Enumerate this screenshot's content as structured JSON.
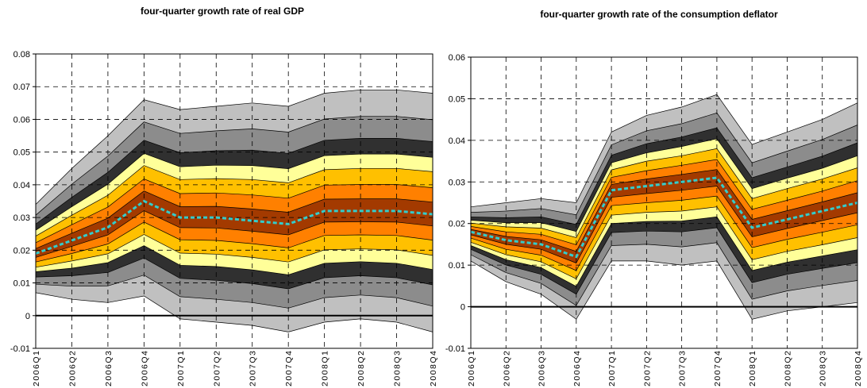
{
  "chart_data": [
    {
      "type": "fan",
      "title": "four-quarter growth rate of real GDP",
      "categories": [
        "2006Q1",
        "2006Q2",
        "2006Q3",
        "2006Q4",
        "2007Q1",
        "2007Q2",
        "2007Q3",
        "2007Q4",
        "2008Q1",
        "2008Q2",
        "2008Q3",
        "2008Q4"
      ],
      "ylim": [
        -0.01,
        0.08
      ],
      "yticks": [
        -0.01,
        0,
        0.01,
        0.02,
        0.03,
        0.04,
        0.05,
        0.06,
        0.07,
        0.08
      ],
      "grid": true,
      "bounds": [
        {
          "values": [
            0.007,
            0.005,
            0.004,
            0.006,
            -0.001,
            -0.002,
            -0.003,
            -0.005,
            -0.002,
            -0.001,
            -0.002,
            -0.005
          ]
        },
        {
          "values": [
            0.0096,
            0.009,
            0.0091,
            0.0124,
            0.0058,
            0.005,
            0.004,
            0.0023,
            0.0055,
            0.0063,
            0.0055,
            0.0029
          ]
        },
        {
          "values": [
            0.0118,
            0.0122,
            0.0132,
            0.0176,
            0.0114,
            0.0108,
            0.0098,
            0.0082,
            0.0116,
            0.0122,
            0.0116,
            0.0094
          ]
        },
        {
          "values": [
            0.0134,
            0.0145,
            0.0162,
            0.0214,
            0.0154,
            0.015,
            0.014,
            0.0125,
            0.016,
            0.0165,
            0.016,
            0.0141
          ]
        },
        {
          "values": [
            0.0148,
            0.0167,
            0.0189,
            0.0248,
            0.0191,
            0.0188,
            0.0178,
            0.0164,
            0.0201,
            0.0204,
            0.0201,
            0.0184
          ]
        },
        {
          "values": [
            0.0164,
            0.019,
            0.0219,
            0.0286,
            0.0232,
            0.023,
            0.022,
            0.0207,
            0.0245,
            0.0247,
            0.0245,
            0.0231
          ]
        },
        {
          "values": [
            0.0178,
            0.0212,
            0.0247,
            0.0321,
            0.0269,
            0.0268,
            0.0258,
            0.0247,
            0.0286,
            0.0287,
            0.0286,
            0.0274
          ]
        },
        {
          "values": [
            0.0205,
            0.0252,
            0.0298,
            0.0381,
            0.0333,
            0.0334,
            0.0326,
            0.0316,
            0.0356,
            0.0357,
            0.0357,
            0.0347
          ]
        },
        {
          "values": [
            0.0223,
            0.0278,
            0.0332,
            0.0418,
            0.0373,
            0.0375,
            0.0369,
            0.0359,
            0.0399,
            0.0401,
            0.0401,
            0.0391
          ]
        },
        {
          "values": [
            0.0243,
            0.0307,
            0.0368,
            0.0459,
            0.0416,
            0.0419,
            0.0416,
            0.0406,
            0.0446,
            0.045,
            0.045,
            0.044
          ]
        },
        {
          "values": [
            0.0261,
            0.0333,
            0.0402,
            0.0496,
            0.0455,
            0.046,
            0.0459,
            0.0449,
            0.0489,
            0.0494,
            0.0494,
            0.0484
          ]
        },
        {
          "values": [
            0.028,
            0.0362,
            0.0438,
            0.0536,
            0.0498,
            0.0504,
            0.0506,
            0.0496,
            0.0536,
            0.0542,
            0.0542,
            0.0532
          ]
        },
        {
          "values": [
            0.0307,
            0.0402,
            0.0488,
            0.0592,
            0.0557,
            0.0565,
            0.0571,
            0.0561,
            0.0601,
            0.0609,
            0.0609,
            0.0599
          ]
        },
        {
          "values": [
            0.034,
            0.045,
            0.055,
            0.066,
            0.063,
            0.064,
            0.065,
            0.064,
            0.068,
            0.069,
            0.069,
            0.068
          ]
        }
      ],
      "band_colors": [
        "#c0c0c0",
        "#8c8c8c",
        "#303030",
        "#ffff99",
        "#ffc000",
        "#ff8000",
        "#a33a00",
        "#ff8000",
        "#ffc000",
        "#ffff99",
        "#303030",
        "#8c8c8c",
        "#c0c0c0"
      ],
      "median": {
        "color": "#33cccc",
        "values": [
          0.019,
          0.023,
          0.027,
          0.035,
          0.03,
          0.03,
          0.029,
          0.028,
          0.032,
          0.032,
          0.032,
          0.031
        ]
      }
    },
    {
      "type": "fan",
      "title": "four-quarter growth rate of the consumption deflator",
      "categories": [
        "2006Q1",
        "2006Q2",
        "2006Q3",
        "2006Q4",
        "2007Q1",
        "2007Q2",
        "2007Q3",
        "2007Q4",
        "2008Q1",
        "2008Q2",
        "2008Q3",
        "2008Q4"
      ],
      "ylim": [
        -0.01,
        0.06
      ],
      "yticks": [
        -0.01,
        0,
        0.01,
        0.02,
        0.03,
        0.04,
        0.05,
        0.06
      ],
      "grid": true,
      "bounds": [
        {
          "values": [
            0.011,
            0.006,
            0.003,
            -0.003,
            0.011,
            0.011,
            0.01,
            0.011,
            -0.003,
            -0.001,
            0,
            0.001
          ]
        },
        {
          "values": [
            0.0125,
            0.0082,
            0.0056,
            0.0003,
            0.0147,
            0.015,
            0.0144,
            0.0154,
            0.0018,
            0.0038,
            0.0051,
            0.0063
          ]
        },
        {
          "values": [
            0.0138,
            0.01,
            0.0078,
            0.003,
            0.0178,
            0.0182,
            0.018,
            0.019,
            0.0058,
            0.0078,
            0.0092,
            0.0106
          ]
        },
        {
          "values": [
            0.0147,
            0.0113,
            0.0094,
            0.0049,
            0.02,
            0.0205,
            0.0206,
            0.0216,
            0.0087,
            0.0107,
            0.0122,
            0.0137
          ]
        },
        {
          "values": [
            0.0155,
            0.0125,
            0.0108,
            0.0067,
            0.022,
            0.0227,
            0.023,
            0.024,
            0.0113,
            0.0133,
            0.0149,
            0.0166
          ]
        },
        {
          "values": [
            0.0165,
            0.0138,
            0.0124,
            0.0087,
            0.0243,
            0.025,
            0.0256,
            0.0266,
            0.0142,
            0.0162,
            0.0179,
            0.0197
          ]
        },
        {
          "values": [
            0.0173,
            0.015,
            0.0138,
            0.0105,
            0.0263,
            0.0272,
            0.028,
            0.029,
            0.0168,
            0.0188,
            0.0207,
            0.0226
          ]
        },
        {
          "values": [
            0.0186,
            0.0169,
            0.0161,
            0.0133,
            0.0294,
            0.0307,
            0.0318,
            0.033,
            0.021,
            0.0231,
            0.0252,
            0.0274
          ]
        },
        {
          "values": [
            0.0193,
            0.018,
            0.0174,
            0.0149,
            0.0311,
            0.0327,
            0.034,
            0.0354,
            0.0234,
            0.0256,
            0.0278,
            0.0303
          ]
        },
        {
          "values": [
            0.0201,
            0.0192,
            0.0189,
            0.0166,
            0.0329,
            0.035,
            0.0363,
            0.038,
            0.026,
            0.0284,
            0.0307,
            0.0334
          ]
        },
        {
          "values": [
            0.0208,
            0.0202,
            0.0202,
            0.0181,
            0.0346,
            0.037,
            0.0385,
            0.0404,
            0.0284,
            0.0309,
            0.0333,
            0.0363
          ]
        },
        {
          "values": [
            0.0216,
            0.0214,
            0.0216,
            0.0198,
            0.0364,
            0.0392,
            0.0408,
            0.043,
            0.031,
            0.0336,
            0.0362,
            0.0394
          ]
        },
        {
          "values": [
            0.0227,
            0.023,
            0.0236,
            0.0221,
            0.0389,
            0.0423,
            0.044,
            0.0466,
            0.0346,
            0.0374,
            0.0402,
            0.0437
          ]
        },
        {
          "values": [
            0.024,
            0.025,
            0.026,
            0.025,
            0.042,
            0.046,
            0.048,
            0.051,
            0.039,
            0.042,
            0.045,
            0.049
          ]
        }
      ],
      "band_colors": [
        "#c0c0c0",
        "#8c8c8c",
        "#303030",
        "#ffff99",
        "#ffc000",
        "#ff8000",
        "#a33a00",
        "#ff8000",
        "#ffc000",
        "#ffff99",
        "#303030",
        "#8c8c8c",
        "#c0c0c0"
      ],
      "median": {
        "color": "#33cccc",
        "values": [
          0.018,
          0.016,
          0.015,
          0.012,
          0.028,
          0.029,
          0.03,
          0.031,
          0.019,
          0.021,
          0.023,
          0.025
        ]
      }
    }
  ]
}
